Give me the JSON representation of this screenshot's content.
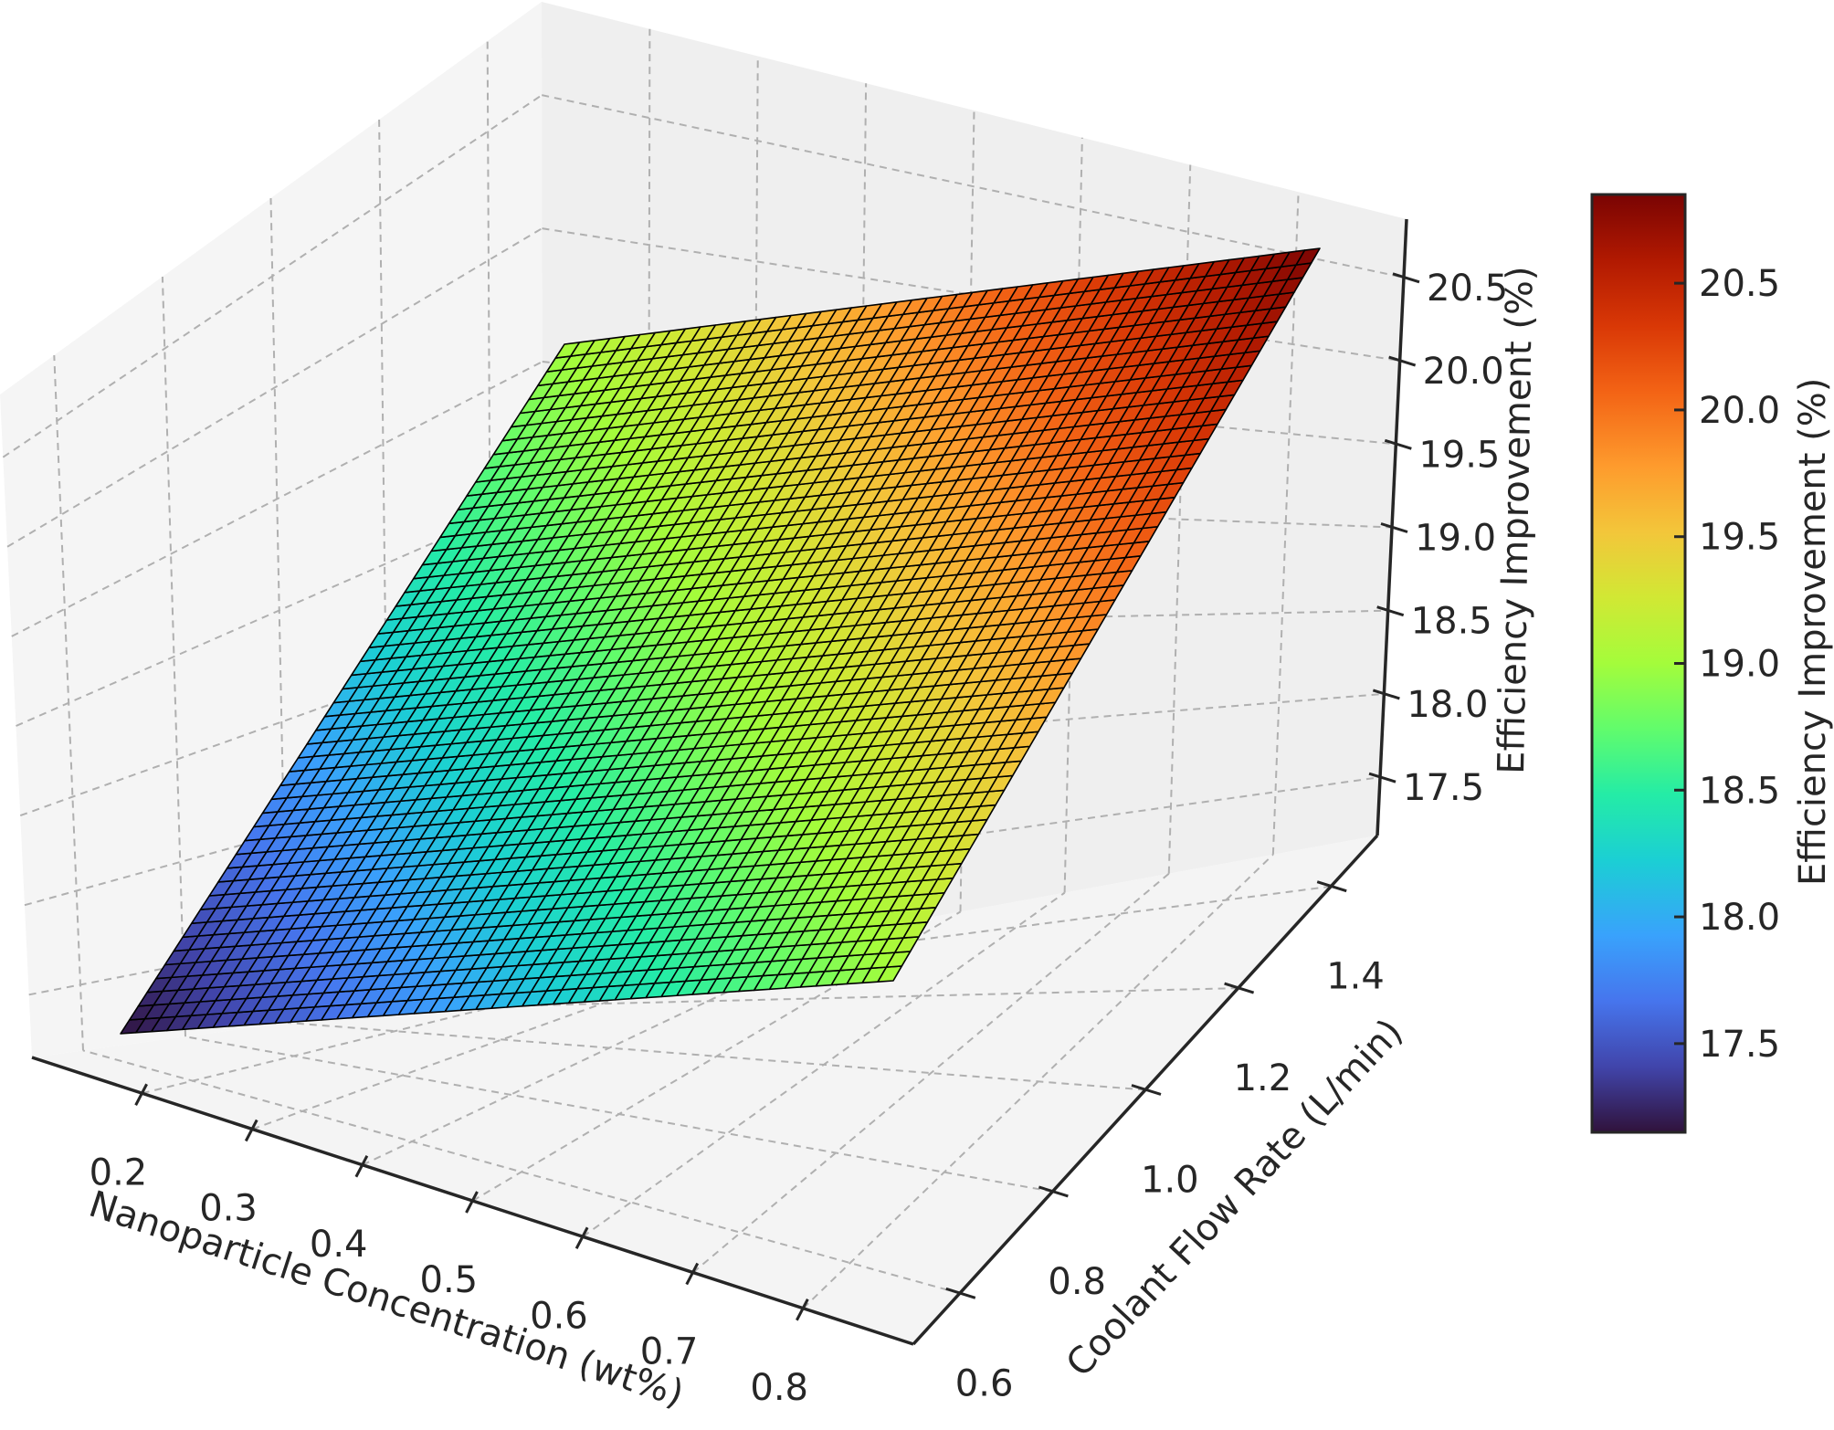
{
  "chart_data": {
    "type": "surface3d",
    "title": "",
    "xlabel": "Nanoparticle Concentration (wt%)",
    "ylabel": "Coolant Flow Rate (L/min)",
    "zlabel": "Efficiency Improvement (%)",
    "colorbar_label": "Efficiency Improvement (%)",
    "colormap": "turbo",
    "x_ticks": [
      "0.2",
      "0.3",
      "0.4",
      "0.5",
      "0.6",
      "0.7",
      "0.8"
    ],
    "y_ticks": [
      "0.6",
      "0.8",
      "1.0",
      "1.2",
      "1.4"
    ],
    "z_ticks": [
      "17.5",
      "18.0",
      "18.5",
      "19.0",
      "19.5",
      "20.0",
      "20.5"
    ],
    "colorbar_ticks": [
      "17.5",
      "18.0",
      "18.5",
      "19.0",
      "19.5",
      "20.0",
      "20.5"
    ],
    "x_range": [
      0.1,
      0.9
    ],
    "y_range": [
      0.5,
      1.5
    ],
    "z_range": [
      17.15,
      20.85
    ],
    "grid": true,
    "surface_grid_size": [
      50,
      50
    ],
    "corners": [
      {
        "x": 0.1,
        "y": 0.5,
        "z": 17.15
      },
      {
        "x": 0.9,
        "y": 0.5,
        "z": 19.0
      },
      {
        "x": 0.1,
        "y": 1.5,
        "z": 19.0
      },
      {
        "x": 0.9,
        "y": 1.5,
        "z": 20.85
      }
    ],
    "colors": {
      "pane_back": "#f0f0f0",
      "pane_floor": "#f5f5f5",
      "grid": "#b0b0b0",
      "axis": "#262626",
      "mesh_edge": "#000000"
    }
  }
}
